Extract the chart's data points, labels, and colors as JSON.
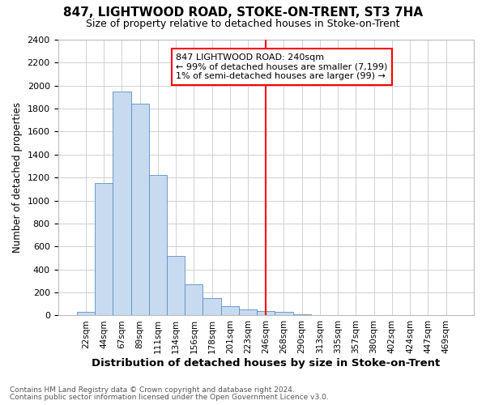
{
  "title": "847, LIGHTWOOD ROAD, STOKE-ON-TRENT, ST3 7HA",
  "subtitle": "Size of property relative to detached houses in Stoke-on-Trent",
  "xlabel": "Distribution of detached houses by size in Stoke-on-Trent",
  "ylabel": "Number of detached properties",
  "footnote1": "Contains HM Land Registry data © Crown copyright and database right 2024.",
  "footnote2": "Contains public sector information licensed under the Open Government Licence v3.0.",
  "annotation_title": "847 LIGHTWOOD ROAD: 240sqm",
  "annotation_line1": "← 99% of detached houses are smaller (7,199)",
  "annotation_line2": "1% of semi-detached houses are larger (99) →",
  "bar_labels": [
    "22sqm",
    "44sqm",
    "67sqm",
    "89sqm",
    "111sqm",
    "134sqm",
    "156sqm",
    "178sqm",
    "201sqm",
    "223sqm",
    "246sqm",
    "268sqm",
    "290sqm",
    "313sqm",
    "335sqm",
    "357sqm",
    "380sqm",
    "402sqm",
    "424sqm",
    "447sqm",
    "469sqm"
  ],
  "bar_values": [
    30,
    1150,
    1950,
    1840,
    1220,
    520,
    270,
    150,
    80,
    50,
    40,
    30,
    10,
    5,
    3,
    2,
    1,
    0,
    0,
    0,
    0
  ],
  "bar_color": "#c8daf0",
  "bar_edge_color": "#5a8fc0",
  "marker_index": 10,
  "marker_color": "red",
  "ylim": [
    0,
    2400
  ],
  "yticks": [
    0,
    200,
    400,
    600,
    800,
    1000,
    1200,
    1400,
    1600,
    1800,
    2000,
    2200,
    2400
  ],
  "annotation_box_color": "red",
  "annotation_bg_color": "white",
  "grid_color": "#d0d0d0",
  "title_fontsize": 11,
  "subtitle_fontsize": 9
}
